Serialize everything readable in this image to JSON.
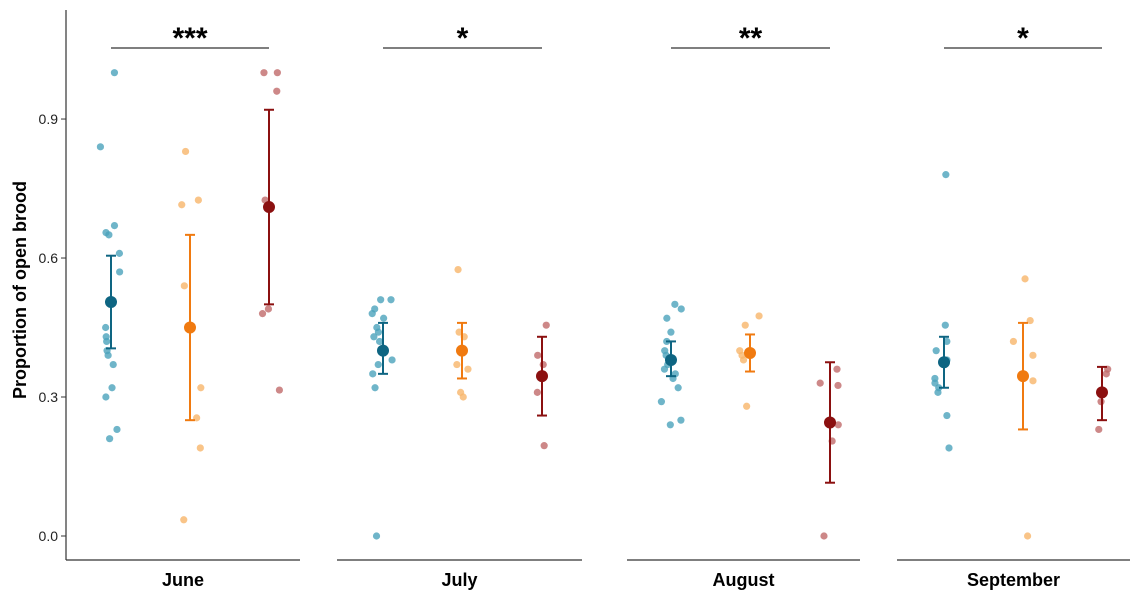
{
  "chart_data": {
    "type": "scatter",
    "ylabel": "Proportion of open brood",
    "yticks": [
      "0.0",
      "0.3",
      "0.6",
      "0.9"
    ],
    "ylim": [
      -0.03,
      1.13
    ],
    "grid": false,
    "colors": {
      "group1_mean": "#0e6582",
      "group1_points": "#4ba3bb",
      "group2_mean": "#f07a10",
      "group2_points": "#f8b56a",
      "group3_mean": "#8b1010",
      "group3_points": "#c06a6a",
      "axis": "#333333"
    },
    "panels": [
      {
        "label": "June",
        "significance": "***",
        "groups": [
          {
            "mean": 0.505,
            "lower": 0.405,
            "upper": 0.605,
            "points": [
              1.0,
              0.84,
              0.67,
              0.655,
              0.65,
              0.61,
              0.57,
              0.45,
              0.43,
              0.42,
              0.4,
              0.39,
              0.37,
              0.32,
              0.3,
              0.23,
              0.21
            ]
          },
          {
            "mean": 0.45,
            "lower": 0.25,
            "upper": 0.65,
            "points": [
              0.83,
              0.725,
              0.715,
              0.54,
              0.32,
              0.255,
              0.19,
              0.035
            ]
          },
          {
            "mean": 0.71,
            "lower": 0.5,
            "upper": 0.92,
            "points": [
              1.0,
              1.0,
              0.96,
              0.725,
              0.49,
              0.48,
              0.315
            ]
          }
        ]
      },
      {
        "label": "July",
        "significance": "*",
        "groups": [
          {
            "mean": 0.4,
            "lower": 0.35,
            "upper": 0.46,
            "points": [
              0.51,
              0.51,
              0.49,
              0.48,
              0.47,
              0.45,
              0.44,
              0.43,
              0.42,
              0.4,
              0.38,
              0.37,
              0.35,
              0.32,
              0.0
            ]
          },
          {
            "mean": 0.4,
            "lower": 0.34,
            "upper": 0.46,
            "points": [
              0.575,
              0.44,
              0.43,
              0.4,
              0.37,
              0.36,
              0.31,
              0.3
            ]
          },
          {
            "mean": 0.345,
            "lower": 0.26,
            "upper": 0.43,
            "points": [
              0.455,
              0.39,
              0.37,
              0.31,
              0.195
            ]
          }
        ]
      },
      {
        "label": "August",
        "significance": "**",
        "groups": [
          {
            "mean": 0.38,
            "lower": 0.345,
            "upper": 0.42,
            "points": [
              0.5,
              0.49,
              0.47,
              0.44,
              0.42,
              0.4,
              0.39,
              0.37,
              0.36,
              0.35,
              0.34,
              0.32,
              0.29,
              0.25,
              0.24
            ]
          },
          {
            "mean": 0.395,
            "lower": 0.355,
            "upper": 0.435,
            "points": [
              0.475,
              0.455,
              0.4,
              0.39,
              0.38,
              0.28
            ]
          },
          {
            "mean": 0.245,
            "lower": 0.115,
            "upper": 0.375,
            "points": [
              0.36,
              0.33,
              0.325,
              0.24,
              0.205,
              0.0
            ]
          }
        ]
      },
      {
        "label": "September",
        "significance": "*",
        "groups": [
          {
            "mean": 0.375,
            "lower": 0.32,
            "upper": 0.43,
            "points": [
              0.78,
              0.455,
              0.42,
              0.4,
              0.38,
              0.34,
              0.33,
              0.32,
              0.31,
              0.26,
              0.19
            ]
          },
          {
            "mean": 0.345,
            "lower": 0.23,
            "upper": 0.46,
            "points": [
              0.555,
              0.465,
              0.42,
              0.39,
              0.345,
              0.335,
              0.0
            ]
          },
          {
            "mean": 0.31,
            "lower": 0.25,
            "upper": 0.365,
            "points": [
              0.36,
              0.35,
              0.29,
              0.23
            ]
          }
        ]
      }
    ]
  }
}
